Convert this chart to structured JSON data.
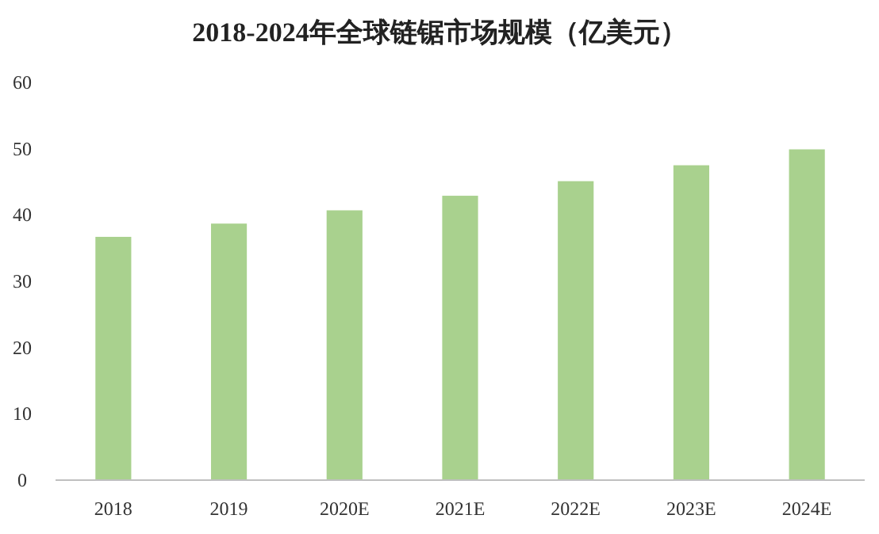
{
  "chart_data": {
    "type": "bar",
    "title": "2018-2024年全球链锯市场规模（亿美元）",
    "categories": [
      "2018",
      "2019",
      "2020E",
      "2021E",
      "2022E",
      "2023E",
      "2024E"
    ],
    "values": [
      36.7,
      38.7,
      40.7,
      42.9,
      45.1,
      47.5,
      49.9
    ],
    "color": "#a9d18e",
    "ylim": [
      0,
      60
    ],
    "yticks": [
      0,
      10,
      20,
      30,
      40,
      50,
      60
    ],
    "grid": false
  }
}
